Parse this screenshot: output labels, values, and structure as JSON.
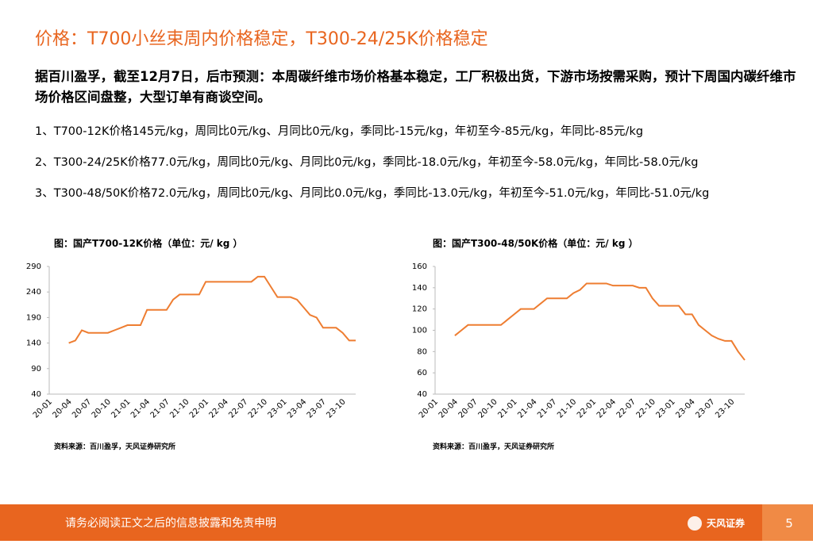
{
  "header": {
    "title": "价格：T700小丝束周内价格稳定，T300-24/25K价格稳定"
  },
  "summary": "据百川盈孚，截至12月7日，后市预测：本周碳纤维市场价格基本稳定，工厂积极出货，下游市场按需采购，预计下周国内碳纤维市场价格区间盘整，大型订单有商谈空间。",
  "items": [
    "1、T700-12K价格145元/kg，周同比0元/kg、月同比0元/kg，季同比-15元/kg，年初至今-85元/kg，年同比-85元/kg",
    "2、T300-24/25K价格77.0元/kg，周同比0元/kg、月同比0元/kg，季同比-18.0元/kg，年初至今-58.0元/kg，年同比-58.0元/kg",
    "3、T300-48/50K价格72.0元/kg，周同比0元/kg、月同比0.0元/kg，季同比-13.0元/kg，年初至今-51.0元/kg，年同比-51.0元/kg"
  ],
  "chart_data": [
    {
      "type": "line",
      "title": "图：国产T700-12K价格（单位：元/ kg ）",
      "source": "资料来源：百川盈孚，天风证券研究所",
      "categories": [
        "20-01",
        null,
        null,
        "20-04",
        null,
        null,
        "20-07",
        null,
        null,
        "20-10",
        null,
        null,
        "21-01",
        null,
        null,
        "21-04",
        null,
        null,
        "21-07",
        null,
        null,
        "21-10",
        null,
        null,
        "22-01",
        null,
        null,
        "22-04",
        null,
        null,
        "22-07",
        null,
        null,
        "22-10",
        null,
        null,
        "23-01",
        null,
        null,
        "23-04",
        null,
        null,
        "23-07",
        null,
        null,
        "23-10",
        null,
        null
      ],
      "series": [
        {
          "color": "#ee7d31",
          "values": [
            null,
            null,
            null,
            140,
            145,
            165,
            160,
            160,
            160,
            160,
            165,
            170,
            175,
            175,
            175,
            205,
            205,
            205,
            205,
            225,
            235,
            235,
            235,
            235,
            260,
            260,
            260,
            260,
            260,
            260,
            260,
            260,
            270,
            270,
            250,
            230,
            230,
            230,
            225,
            210,
            195,
            190,
            170,
            170,
            170,
            160,
            145,
            145
          ]
        }
      ],
      "ylim": [
        40,
        290
      ],
      "yticks": [
        40,
        90,
        140,
        190,
        240,
        290
      ],
      "grid": false
    },
    {
      "type": "line",
      "title": "图：国产T300-48/50K价格（单位：元/ kg ）",
      "source": "资料来源：百川盈孚，天风证券研究所",
      "categories": [
        "20-01",
        null,
        null,
        "20-04",
        null,
        null,
        "20-07",
        null,
        null,
        "20-10",
        null,
        null,
        "21-01",
        null,
        null,
        "21-04",
        null,
        null,
        "21-07",
        null,
        null,
        "21-10",
        null,
        null,
        "22-01",
        null,
        null,
        "22-04",
        null,
        null,
        "22-07",
        null,
        null,
        "22-10",
        null,
        null,
        "23-01",
        null,
        null,
        "23-04",
        null,
        null,
        "23-07",
        null,
        null,
        "23-10",
        null,
        null
      ],
      "series": [
        {
          "color": "#ee7d31",
          "values": [
            null,
            null,
            null,
            95,
            100,
            105,
            105,
            105,
            105,
            105,
            105,
            110,
            115,
            120,
            120,
            120,
            125,
            130,
            130,
            130,
            130,
            135,
            138,
            144,
            144,
            144,
            144,
            142,
            142,
            142,
            142,
            140,
            140,
            130,
            123,
            123,
            123,
            123,
            115,
            115,
            105,
            100,
            95,
            92,
            90,
            90,
            80,
            72
          ]
        }
      ],
      "ylim": [
        40,
        160
      ],
      "yticks": [
        40,
        60,
        80,
        100,
        120,
        140,
        160
      ],
      "grid": false
    }
  ],
  "footer": {
    "disclaimer": "请务必阅读正文之后的信息披露和免责申明",
    "logo": "天风证券",
    "page": "5"
  }
}
